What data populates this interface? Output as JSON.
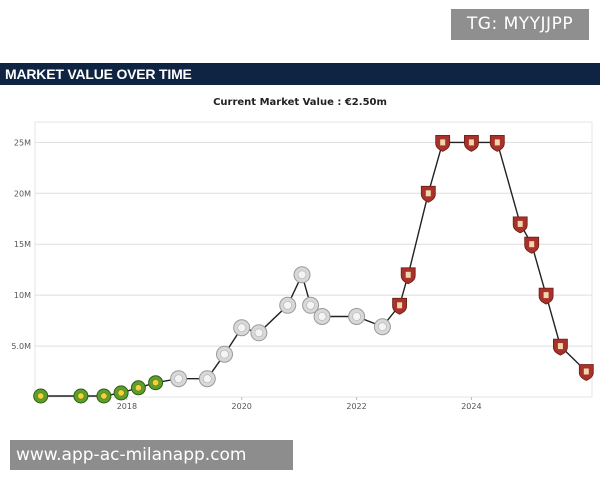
{
  "watermark_top": "TG: MYYJJPP",
  "watermark_bottom": "www.app-ac-milanapp.com",
  "header": {
    "title": "MARKET VALUE OVER TIME"
  },
  "chart_data": {
    "type": "line",
    "title": "Current Market Value : €2.50m",
    "xlabel": "",
    "ylabel": "",
    "x_ticks": [
      "2018",
      "2020",
      "2022",
      "2024"
    ],
    "y_ticks": [
      "5.0M",
      "10M",
      "15M",
      "20M",
      "25M"
    ],
    "ylim": [
      0,
      27
    ],
    "xlim": [
      2016.4,
      2026.1
    ],
    "grid": true,
    "series": [
      {
        "values_unit": "€M",
        "points": [
          {
            "x": 2016.5,
            "y": 0.1,
            "club": "green"
          },
          {
            "x": 2017.2,
            "y": 0.1,
            "club": "green"
          },
          {
            "x": 2017.6,
            "y": 0.1,
            "club": "green"
          },
          {
            "x": 2017.9,
            "y": 0.4,
            "club": "green"
          },
          {
            "x": 2018.2,
            "y": 0.9,
            "club": "green"
          },
          {
            "x": 2018.5,
            "y": 1.4,
            "club": "green"
          },
          {
            "x": 2018.9,
            "y": 1.8,
            "club": "grey"
          },
          {
            "x": 2019.4,
            "y": 1.8,
            "club": "grey"
          },
          {
            "x": 2019.7,
            "y": 4.2,
            "club": "grey"
          },
          {
            "x": 2020.0,
            "y": 6.8,
            "club": "grey"
          },
          {
            "x": 2020.3,
            "y": 6.3,
            "club": "grey"
          },
          {
            "x": 2020.8,
            "y": 9.0,
            "club": "grey"
          },
          {
            "x": 2021.05,
            "y": 12.0,
            "club": "grey"
          },
          {
            "x": 2021.2,
            "y": 9.0,
            "club": "grey"
          },
          {
            "x": 2021.4,
            "y": 7.9,
            "club": "grey"
          },
          {
            "x": 2022.0,
            "y": 7.9,
            "club": "grey"
          },
          {
            "x": 2022.45,
            "y": 6.9,
            "club": "grey"
          },
          {
            "x": 2022.75,
            "y": 9.0,
            "club": "red"
          },
          {
            "x": 2022.9,
            "y": 12.0,
            "club": "red"
          },
          {
            "x": 2023.25,
            "y": 20.0,
            "club": "red"
          },
          {
            "x": 2023.5,
            "y": 25.0,
            "club": "red"
          },
          {
            "x": 2024.0,
            "y": 25.0,
            "club": "red"
          },
          {
            "x": 2024.45,
            "y": 25.0,
            "club": "red"
          },
          {
            "x": 2024.85,
            "y": 17.0,
            "club": "red"
          },
          {
            "x": 2025.05,
            "y": 15.0,
            "club": "red"
          },
          {
            "x": 2025.3,
            "y": 10.0,
            "club": "red"
          },
          {
            "x": 2025.55,
            "y": 5.0,
            "club": "red"
          },
          {
            "x": 2026.0,
            "y": 2.5,
            "club": "red"
          }
        ]
      }
    ],
    "colors": {
      "line": "#222222",
      "grid": "#dddddd",
      "club_green": "#5e9e2c",
      "club_grey": "#d8d8d8",
      "club_red": "#a8322a"
    }
  }
}
